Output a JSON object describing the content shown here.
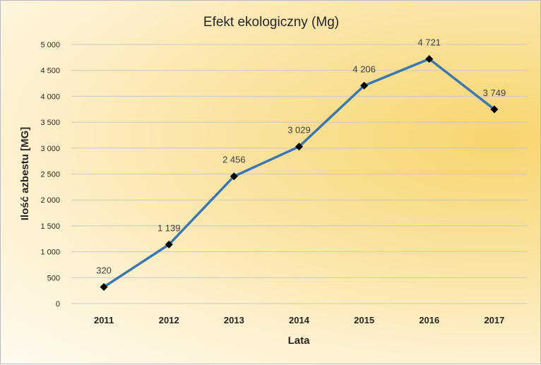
{
  "chart_data": {
    "type": "line",
    "title": "Efekt ekologiczny (Mg)",
    "xlabel": "Lata",
    "ylabel": "Ilość azbestu [MG]",
    "categories": [
      "2011",
      "2012",
      "2013",
      "2014",
      "2015",
      "2016",
      "2017"
    ],
    "series": [
      {
        "values": [
          320,
          1139,
          2456,
          3029,
          4206,
          4721,
          3749
        ],
        "data_labels": [
          "320",
          "1 139",
          "2 456",
          "3 029",
          "4 206",
          "4 721",
          "3 749"
        ],
        "color": "#3a78b0"
      }
    ],
    "ylim": [
      0,
      5000
    ],
    "yticks": [
      0,
      500,
      1000,
      1500,
      2000,
      2500,
      3000,
      3500,
      4000,
      4500,
      5000
    ],
    "ytick_labels": [
      "0",
      "500",
      "1 000",
      "1 500",
      "2 000",
      "2 500",
      "3 000",
      "3 500",
      "4 000",
      "4 500",
      "5 000"
    ],
    "grid": true,
    "legend": "none"
  }
}
